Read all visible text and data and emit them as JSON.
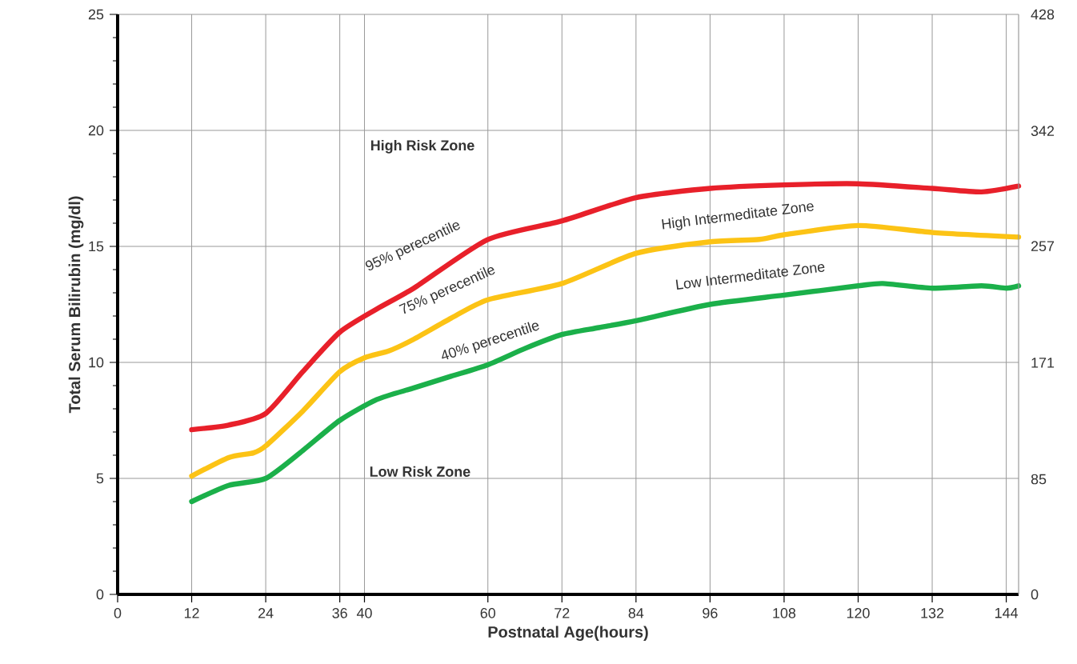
{
  "chart_data": {
    "type": "line",
    "xlabel": "Postnatal Age(hours)",
    "ylabel": "Total Serum Bilirubin (mg/dl)",
    "xlim": [
      0,
      146
    ],
    "ylim": [
      0,
      25
    ],
    "y2lim": [
      0,
      428
    ],
    "xticks": [
      0,
      12,
      24,
      36,
      40,
      60,
      72,
      84,
      96,
      108,
      120,
      132,
      144
    ],
    "yticks": [
      0,
      5,
      10,
      15,
      20,
      25
    ],
    "y2ticks": [
      0,
      85,
      171,
      257,
      342,
      428
    ],
    "grid": true,
    "line_style": "solid",
    "marker": "none",
    "series": [
      {
        "color": "#e8202a",
        "x": [
          12,
          18,
          24,
          30,
          36,
          42,
          48,
          60,
          72,
          84,
          96,
          108,
          120,
          132,
          140,
          146
        ],
        "values": [
          7.1,
          7.3,
          7.8,
          9.6,
          11.3,
          12.3,
          13.2,
          15.3,
          16.1,
          17.1,
          17.5,
          17.65,
          17.7,
          17.5,
          17.35,
          17.6
        ]
      },
      {
        "color": "#fcc315",
        "x": [
          12,
          18,
          22,
          24,
          30,
          36,
          40,
          44,
          48,
          54,
          60,
          72,
          84,
          96,
          104,
          108,
          120,
          132,
          146
        ],
        "values": [
          5.1,
          5.9,
          6.1,
          6.4,
          7.9,
          9.6,
          10.2,
          10.5,
          11.0,
          11.9,
          12.7,
          13.4,
          14.7,
          15.2,
          15.3,
          15.5,
          15.9,
          15.6,
          15.4
        ]
      },
      {
        "color": "#1bb04a",
        "x": [
          12,
          18,
          24,
          30,
          36,
          42,
          48,
          54,
          60,
          66,
          72,
          78,
          84,
          96,
          108,
          120,
          124,
          132,
          140,
          144,
          146
        ],
        "values": [
          4.0,
          4.7,
          5.0,
          6.2,
          7.5,
          8.4,
          8.9,
          9.4,
          9.9,
          10.6,
          11.2,
          11.5,
          11.8,
          12.5,
          12.9,
          13.3,
          13.4,
          13.2,
          13.3,
          13.2,
          13.3
        ]
      }
    ],
    "annotations": [
      "High Risk Zone",
      "95% perecentile",
      "75% perecentile",
      "40% perecentile",
      "High Intermeditate Zone",
      "Low Intermeditate Zone",
      "Low Risk Zone"
    ]
  }
}
